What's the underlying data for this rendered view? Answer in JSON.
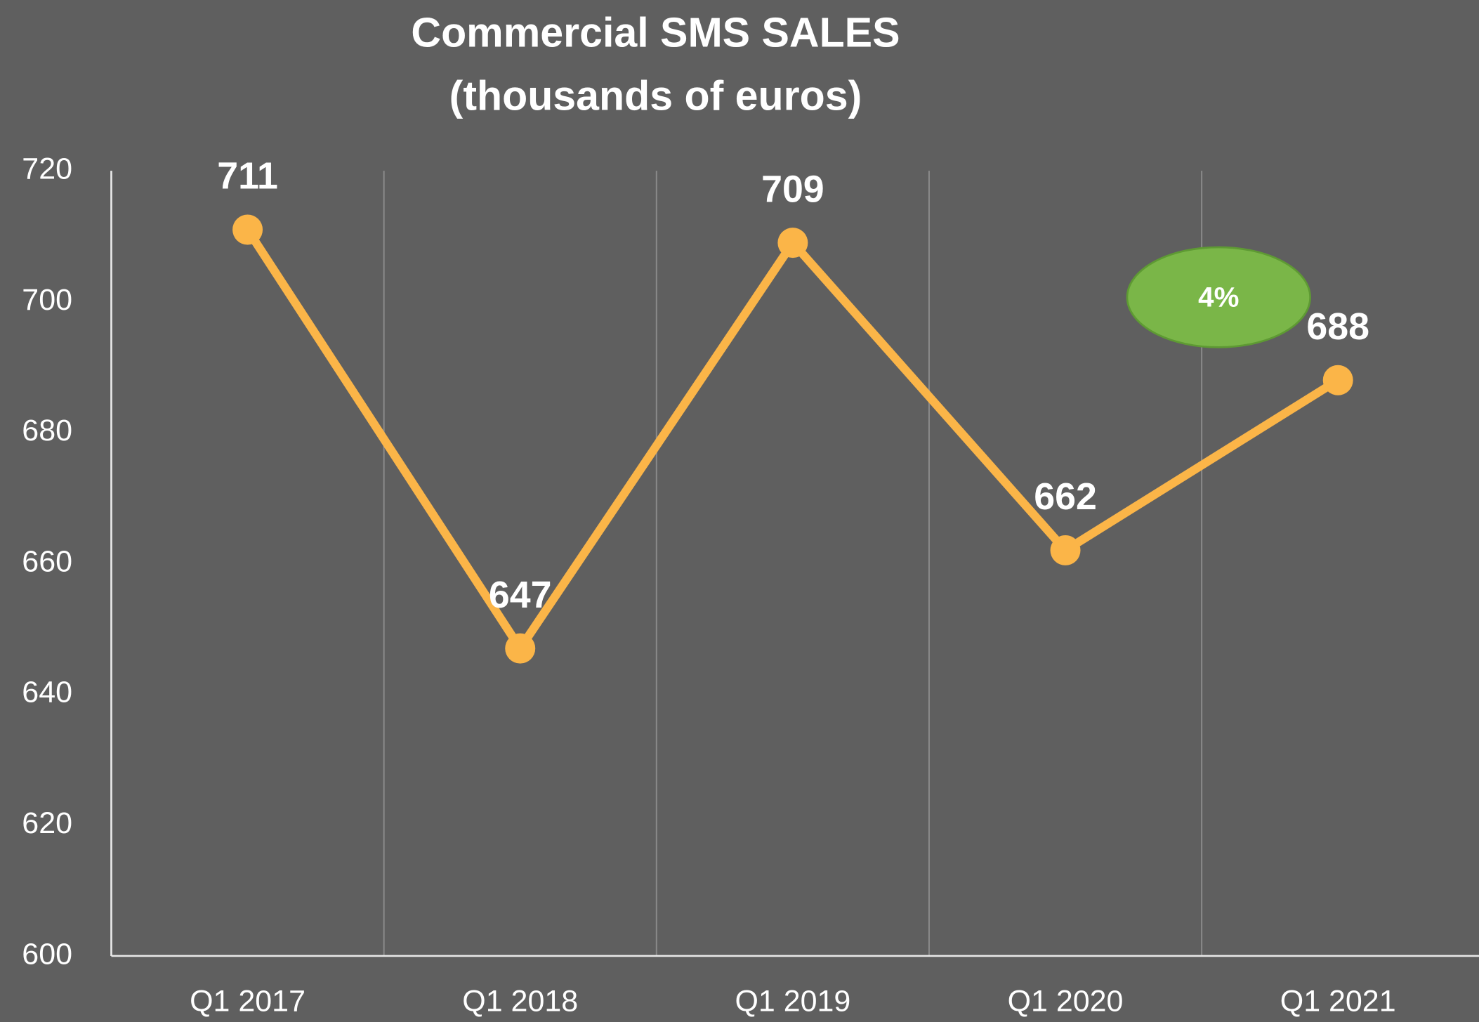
{
  "chart_data": {
    "type": "line",
    "title": "Commercial SMS SALES",
    "subtitle": "(thousands of euros)",
    "categories": [
      "Q1 2017",
      "Q1 2018",
      "Q1 2019",
      "Q1 2020",
      "Q1 2021"
    ],
    "series": [
      {
        "name": "Commercial SMS sales",
        "color": "#fbb548",
        "values": [
          711,
          647,
          709,
          662,
          688
        ]
      }
    ],
    "ylim": [
      600,
      720
    ],
    "yticks": [
      600,
      620,
      640,
      660,
      680,
      700,
      720
    ],
    "grid": "x",
    "annotations": [
      {
        "text": "4%",
        "color": "#7ab648"
      }
    ]
  }
}
